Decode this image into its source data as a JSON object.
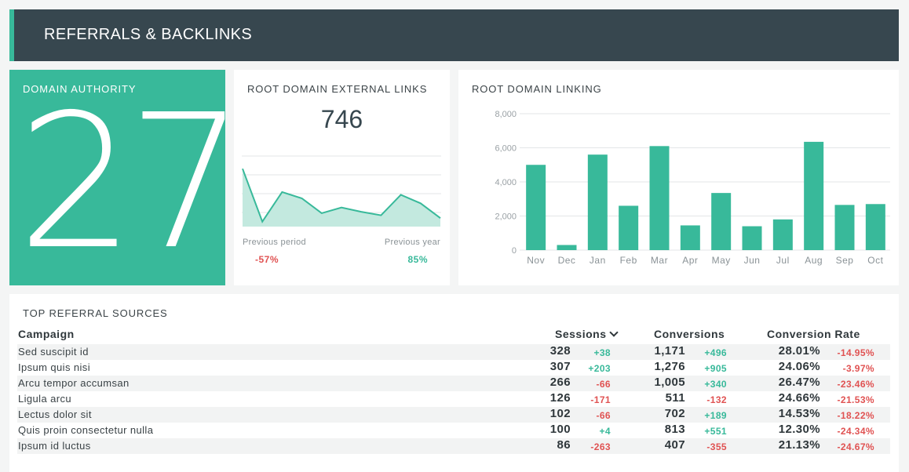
{
  "header": {
    "title": "REFERRALS & BACKLINKS"
  },
  "domain_authority": {
    "title": "DOMAIN AUTHORITY",
    "value": "27"
  },
  "external_links": {
    "title": "ROOT DOMAIN EXTERNAL LINKS",
    "value": "746",
    "sparkline": [
      82,
      7,
      49,
      40,
      19,
      27,
      21,
      16,
      45,
      33,
      12
    ],
    "previous_period_label": "Previous period",
    "previous_period_value": "-57%",
    "previous_year_label": "Previous year",
    "previous_year_value": "85%",
    "colors": {
      "line": "#38b99a",
      "fill": "#c3e9df"
    }
  },
  "chart_data": {
    "type": "bar",
    "title": "ROOT DOMAIN LINKING",
    "categories": [
      "Nov",
      "Dec",
      "Jan",
      "Feb",
      "Mar",
      "Apr",
      "May",
      "Jun",
      "Jul",
      "Aug",
      "Sep",
      "Oct"
    ],
    "values": [
      5000,
      300,
      5600,
      2600,
      6100,
      1450,
      3350,
      1400,
      1800,
      6350,
      2650,
      2700
    ],
    "ylim": [
      0,
      8000
    ],
    "yticks": [
      0,
      2000,
      4000,
      6000,
      8000
    ],
    "ytick_labels": [
      "0",
      "2,000",
      "4,000",
      "6,000",
      "8,000"
    ],
    "grid": true,
    "bar_color": "#38b99a"
  },
  "table": {
    "title": "TOP REFERRAL SOURCES",
    "headers": {
      "campaign": "Campaign",
      "sessions": "Sessions",
      "conversions": "Conversions",
      "conversion_rate": "Conversion Rate"
    },
    "rows": [
      {
        "name": "Sed suscipit id",
        "sessions": "328",
        "sessions_delta": "+38",
        "conversions": "1,171",
        "conversions_delta": "+496",
        "rate": "28.01%",
        "rate_delta": "-14.95%"
      },
      {
        "name": "Ipsum quis nisi",
        "sessions": "307",
        "sessions_delta": "+203",
        "conversions": "1,276",
        "conversions_delta": "+905",
        "rate": "24.06%",
        "rate_delta": "-3.97%"
      },
      {
        "name": "Arcu tempor accumsan",
        "sessions": "266",
        "sessions_delta": "-66",
        "conversions": "1,005",
        "conversions_delta": "+340",
        "rate": "26.47%",
        "rate_delta": "-23.46%"
      },
      {
        "name": "Ligula arcu",
        "sessions": "126",
        "sessions_delta": "-171",
        "conversions": "511",
        "conversions_delta": "-132",
        "rate": "24.66%",
        "rate_delta": "-21.53%"
      },
      {
        "name": "Lectus dolor sit",
        "sessions": "102",
        "sessions_delta": "-66",
        "conversions": "702",
        "conversions_delta": "+189",
        "rate": "14.53%",
        "rate_delta": "-18.22%"
      },
      {
        "name": "Quis proin consectetur nulla",
        "sessions": "100",
        "sessions_delta": "+4",
        "conversions": "813",
        "conversions_delta": "+551",
        "rate": "12.30%",
        "rate_delta": "-24.34%"
      },
      {
        "name": "Ipsum id luctus",
        "sessions": "86",
        "sessions_delta": "-263",
        "conversions": "407",
        "conversions_delta": "-355",
        "rate": "21.13%",
        "rate_delta": "-24.67%"
      }
    ]
  }
}
